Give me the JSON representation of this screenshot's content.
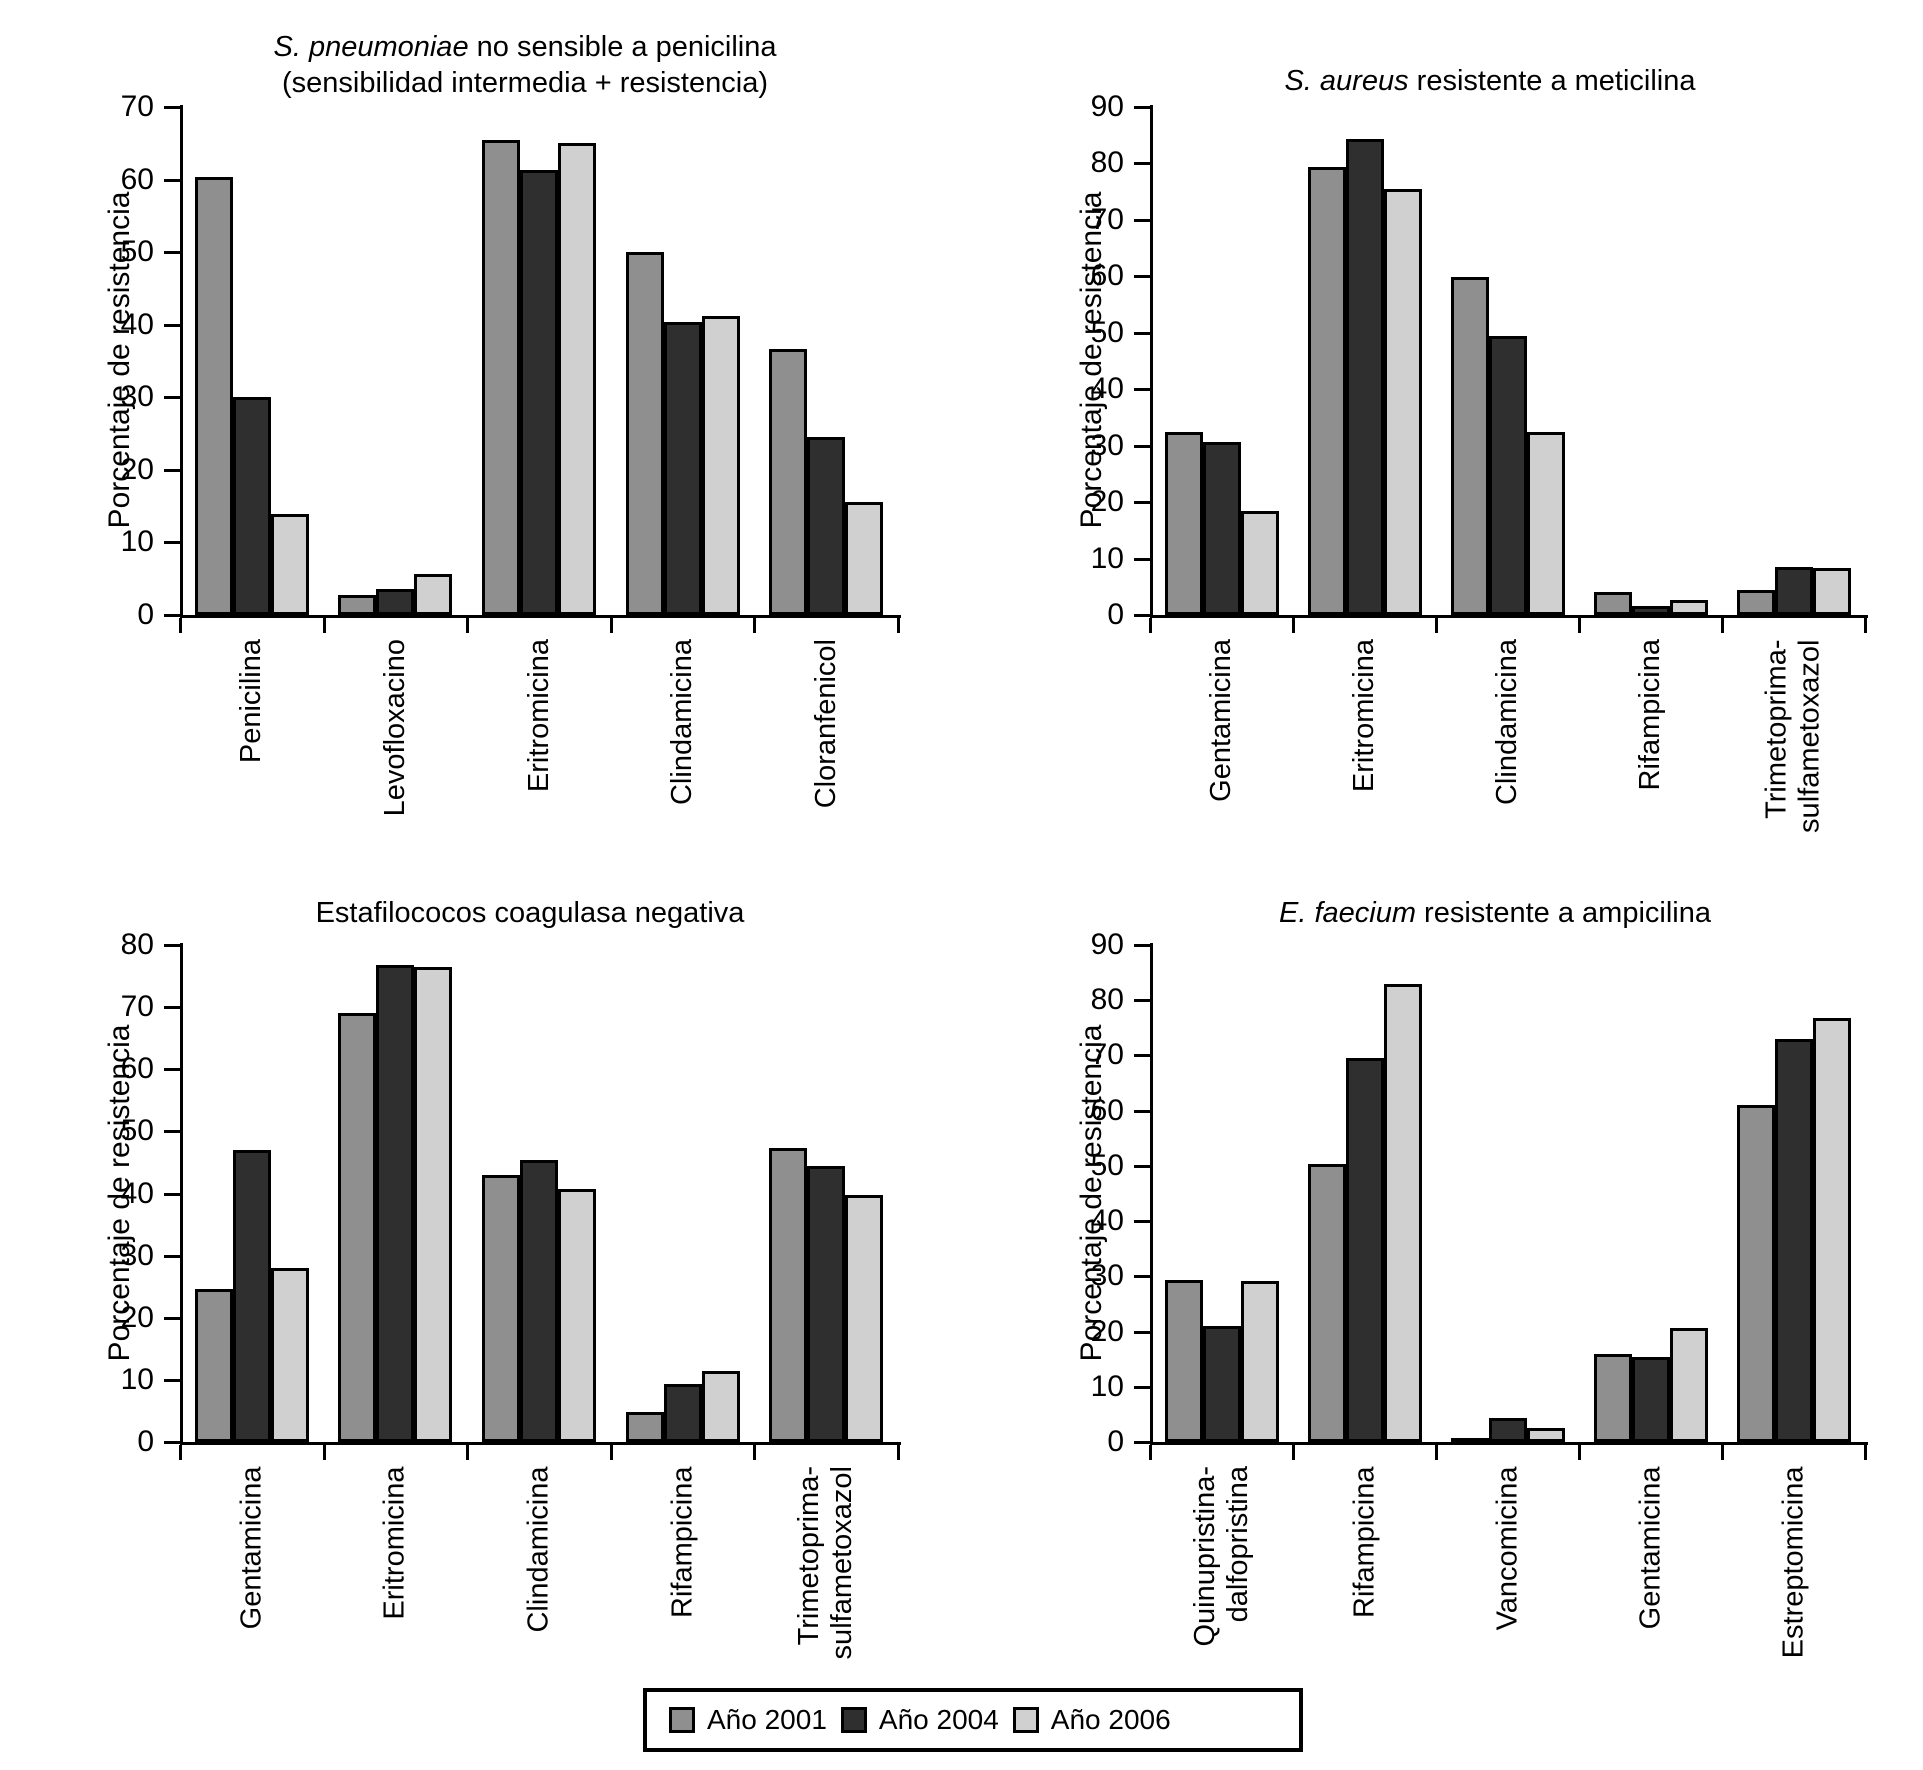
{
  "figure": {
    "background": "#ffffff",
    "text_color": "#000000"
  },
  "legend": {
    "position": "bottom-center",
    "items": [
      {
        "label": "Año 2001",
        "color": "#8f8f8f"
      },
      {
        "label": "Año 2004",
        "color": "#2f2f2f"
      },
      {
        "label": "Año 2006",
        "color": "#d0d0d0"
      }
    ]
  },
  "chart_data": [
    {
      "type": "bar",
      "title_lines": [
        [
          {
            "text": "S. pneumoniae",
            "italic": true
          },
          {
            "text": " no sensible a penicilina",
            "italic": false
          }
        ],
        [
          {
            "text": "(sensibilidad intermedia + resistencia)",
            "italic": false
          }
        ]
      ],
      "ylabel": "Porcentaje de resistencia",
      "xlabel": "",
      "ylim": [
        0,
        70
      ],
      "ytick_step": 10,
      "grid": false,
      "categories": [
        [
          "Penicilina"
        ],
        [
          "Levofloxacino"
        ],
        [
          "Eritromicina"
        ],
        [
          "Clindamicina"
        ],
        [
          "Cloranfenicol"
        ]
      ],
      "series": [
        {
          "name": "Año 2001",
          "color": "#8f8f8f",
          "values": [
            60.4,
            2.8,
            65.5,
            50.0,
            36.6
          ]
        },
        {
          "name": "Año 2004",
          "color": "#2f2f2f",
          "values": [
            30.0,
            3.6,
            61.3,
            40.4,
            24.5
          ]
        },
        {
          "name": "Año 2006",
          "color": "#d0d0d0",
          "values": [
            13.9,
            5.7,
            65.0,
            41.2,
            15.6
          ]
        }
      ]
    },
    {
      "type": "bar",
      "title_lines": [
        [
          {
            "text": "S. aureus",
            "italic": true
          },
          {
            "text": " resistente a meticilina",
            "italic": false
          }
        ]
      ],
      "ylabel": "Porcentaje de resistencia",
      "xlabel": "",
      "ylim": [
        0,
        90
      ],
      "ytick_step": 10,
      "grid": false,
      "categories": [
        [
          "Gentamicina"
        ],
        [
          "Eritromicina"
        ],
        [
          "Clindamicina"
        ],
        [
          "Rifampicina"
        ],
        [
          "Trimetoprima-",
          "sulfametoxazol"
        ]
      ],
      "series": [
        {
          "name": "Año 2001",
          "color": "#8f8f8f",
          "values": [
            32.4,
            79.4,
            59.8,
            4.0,
            4.4
          ]
        },
        {
          "name": "Año 2004",
          "color": "#2f2f2f",
          "values": [
            30.6,
            84.3,
            49.5,
            1.6,
            8.5
          ]
        },
        {
          "name": "Año 2006",
          "color": "#d0d0d0",
          "values": [
            18.5,
            75.5,
            32.4,
            2.6,
            8.4
          ]
        }
      ]
    },
    {
      "type": "bar",
      "title_lines": [
        [
          {
            "text": "Estafilococos coagulasa negativa",
            "italic": false
          }
        ]
      ],
      "ylabel": "Porcentaje de resistencia",
      "xlabel": "",
      "ylim": [
        0,
        80
      ],
      "ytick_step": 10,
      "grid": false,
      "categories": [
        [
          "Gentamicina"
        ],
        [
          "Eritromicina"
        ],
        [
          "Clindamicina"
        ],
        [
          "Rifampicina"
        ],
        [
          "Trimetoprima-",
          "sulfametoxazol"
        ]
      ],
      "series": [
        {
          "name": "Año 2001",
          "color": "#8f8f8f",
          "values": [
            24.6,
            69.0,
            42.9,
            4.9,
            47.3
          ]
        },
        {
          "name": "Año 2004",
          "color": "#2f2f2f",
          "values": [
            47.0,
            76.8,
            45.4,
            9.4,
            44.5
          ]
        },
        {
          "name": "Año 2006",
          "color": "#d0d0d0",
          "values": [
            28.0,
            76.4,
            40.7,
            11.4,
            39.8
          ]
        }
      ]
    },
    {
      "type": "bar",
      "title_lines": [
        [
          {
            "text": "E. faecium",
            "italic": true
          },
          {
            "text": " resistente a ampicilina",
            "italic": false
          }
        ]
      ],
      "ylabel": "Porcentaje de resistencia",
      "xlabel": "",
      "ylim": [
        0,
        90
      ],
      "ytick_step": 10,
      "grid": false,
      "categories": [
        [
          "Quinupristina-",
          "dalfopristina"
        ],
        [
          "Rifampicina"
        ],
        [
          "Vancomicina"
        ],
        [
          "Gentamicina"
        ],
        [
          "Estreptomicina"
        ]
      ],
      "series": [
        {
          "name": "Año 2001",
          "color": "#8f8f8f",
          "values": [
            29.3,
            50.4,
            0.7,
            15.9,
            61.0
          ]
        },
        {
          "name": "Año 2004",
          "color": "#2f2f2f",
          "values": [
            21.0,
            69.5,
            4.4,
            15.4,
            72.9
          ]
        },
        {
          "name": "Año 2006",
          "color": "#d0d0d0",
          "values": [
            29.2,
            83.0,
            2.6,
            20.7,
            76.7
          ]
        }
      ]
    }
  ]
}
